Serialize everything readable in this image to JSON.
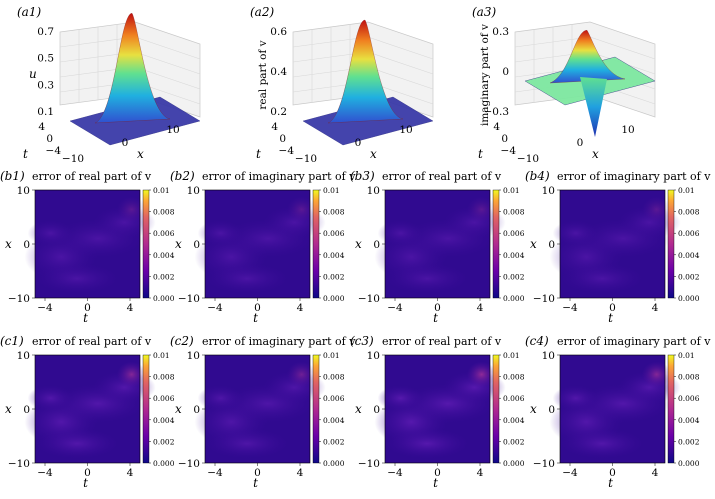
{
  "surfaces": [
    {
      "panel_label": "(a1)",
      "zlabel": "u",
      "zticks": [
        "0.7",
        "0.5",
        "0.3",
        "0.1"
      ],
      "yticks": [
        "4",
        "0",
        "−4"
      ],
      "xticks": [
        "−10",
        "0",
        "10"
      ],
      "ylabel": "t",
      "xlabel": "x",
      "ylim": [
        0.05,
        0.75
      ],
      "peak": 0.75,
      "kind": "modulus"
    },
    {
      "panel_label": "(a2)",
      "zlabel": "real part of v",
      "zticks": [
        "0.6",
        "0.4",
        "0.2"
      ],
      "yticks": [
        "4",
        "0",
        "−4"
      ],
      "xticks": [
        "−10",
        "0",
        "10"
      ],
      "ylabel": "t",
      "xlabel": "x",
      "ylim": [
        0.0,
        0.65
      ],
      "peak": 0.65,
      "kind": "real"
    },
    {
      "panel_label": "(a3)",
      "zlabel": "imaginary part of v",
      "zticks": [
        "0.3",
        "0",
        "−0.3"
      ],
      "yticks": [
        "4",
        "0",
        "−4"
      ],
      "xticks": [
        "−10",
        "0",
        "10"
      ],
      "ylabel": "t",
      "xlabel": "x",
      "ylim": [
        -0.35,
        0.35
      ],
      "peak": 0.33,
      "kind": "imag"
    }
  ],
  "error_panels": [
    {
      "panel_label": "(b1)",
      "title": "error of real part of v"
    },
    {
      "panel_label": "(b2)",
      "title": "error of imaginary part of v"
    },
    {
      "panel_label": "(b3)",
      "title": "error of real part of v"
    },
    {
      "panel_label": "(b4)",
      "title": "error of imaginary part of v"
    },
    {
      "panel_label": "(c1)",
      "title": "error of real part of v"
    },
    {
      "panel_label": "(c2)",
      "title": "error of imaginary part of v"
    },
    {
      "panel_label": "(c3)",
      "title": "error of real part of v"
    },
    {
      "panel_label": "(c4)",
      "title": "error of imaginary part of v"
    }
  ],
  "heatmap_axes": {
    "xlabel": "t",
    "ylabel": "x",
    "xticks": [
      "−4",
      "0",
      "4"
    ],
    "yticks": [
      "10",
      "0",
      "−10"
    ],
    "colorbar_ticks": [
      "0.01",
      "0.008",
      "0.006",
      "0.004",
      "0.002",
      "0.000"
    ]
  },
  "chart_data": [
    {
      "type": "surface",
      "title": "",
      "zlabel": "u",
      "xlabel": "x",
      "ylabel": "t",
      "x_range": [
        -10,
        10
      ],
      "t_range": [
        -4,
        4
      ],
      "z_range": [
        0.1,
        0.7
      ],
      "peak_value": 0.75
    },
    {
      "type": "surface",
      "title": "",
      "zlabel": "real part of v",
      "xlabel": "x",
      "ylabel": "t",
      "x_range": [
        -10,
        10
      ],
      "t_range": [
        -4,
        4
      ],
      "z_range": [
        0.2,
        0.6
      ],
      "peak_value": 0.65
    },
    {
      "type": "surface",
      "title": "",
      "zlabel": "imaginary part of v",
      "xlabel": "x",
      "ylabel": "t",
      "x_range": [
        -10,
        10
      ],
      "t_range": [
        -4,
        4
      ],
      "z_range": [
        -0.3,
        0.3
      ],
      "peak_value": 0.33,
      "min_value": -0.33
    },
    {
      "type": "heatmap",
      "title": "error of real part of v",
      "xlabel": "t",
      "ylabel": "x",
      "x_range": [
        -5,
        5
      ],
      "y_range": [
        -10,
        10
      ],
      "colorbar_range": [
        0,
        0.01
      ],
      "max_error": 0.002
    },
    {
      "type": "heatmap",
      "title": "error of imaginary part of v",
      "xlabel": "t",
      "ylabel": "x",
      "x_range": [
        -5,
        5
      ],
      "y_range": [
        -10,
        10
      ],
      "colorbar_range": [
        0,
        0.01
      ],
      "max_error": 0.002
    },
    {
      "type": "heatmap",
      "title": "error of real part of v",
      "xlabel": "t",
      "ylabel": "x",
      "x_range": [
        -5,
        5
      ],
      "y_range": [
        -10,
        10
      ],
      "colorbar_range": [
        0,
        0.01
      ],
      "max_error": 0.002
    },
    {
      "type": "heatmap",
      "title": "error of imaginary part of v",
      "xlabel": "t",
      "ylabel": "x",
      "x_range": [
        -5,
        5
      ],
      "y_range": [
        -10,
        10
      ],
      "colorbar_range": [
        0,
        0.01
      ],
      "max_error": 0.002
    },
    {
      "type": "heatmap",
      "title": "error of real part of v",
      "xlabel": "t",
      "ylabel": "x",
      "x_range": [
        -5,
        5
      ],
      "y_range": [
        -10,
        10
      ],
      "colorbar_range": [
        0,
        0.01
      ],
      "max_error": 0.004
    },
    {
      "type": "heatmap",
      "title": "error of imaginary part of v",
      "xlabel": "t",
      "ylabel": "x",
      "x_range": [
        -5,
        5
      ],
      "y_range": [
        -10,
        10
      ],
      "colorbar_range": [
        0,
        0.01
      ],
      "max_error": 0.003
    },
    {
      "type": "heatmap",
      "title": "error of real part of v",
      "xlabel": "t",
      "ylabel": "x",
      "x_range": [
        -5,
        5
      ],
      "y_range": [
        -10,
        10
      ],
      "colorbar_range": [
        0,
        0.01
      ],
      "max_error": 0.005
    },
    {
      "type": "heatmap",
      "title": "error of imaginary part of v",
      "xlabel": "t",
      "ylabel": "x",
      "x_range": [
        -5,
        5
      ],
      "y_range": [
        -10,
        10
      ],
      "colorbar_range": [
        0,
        0.01
      ],
      "max_error": 0.004
    }
  ]
}
